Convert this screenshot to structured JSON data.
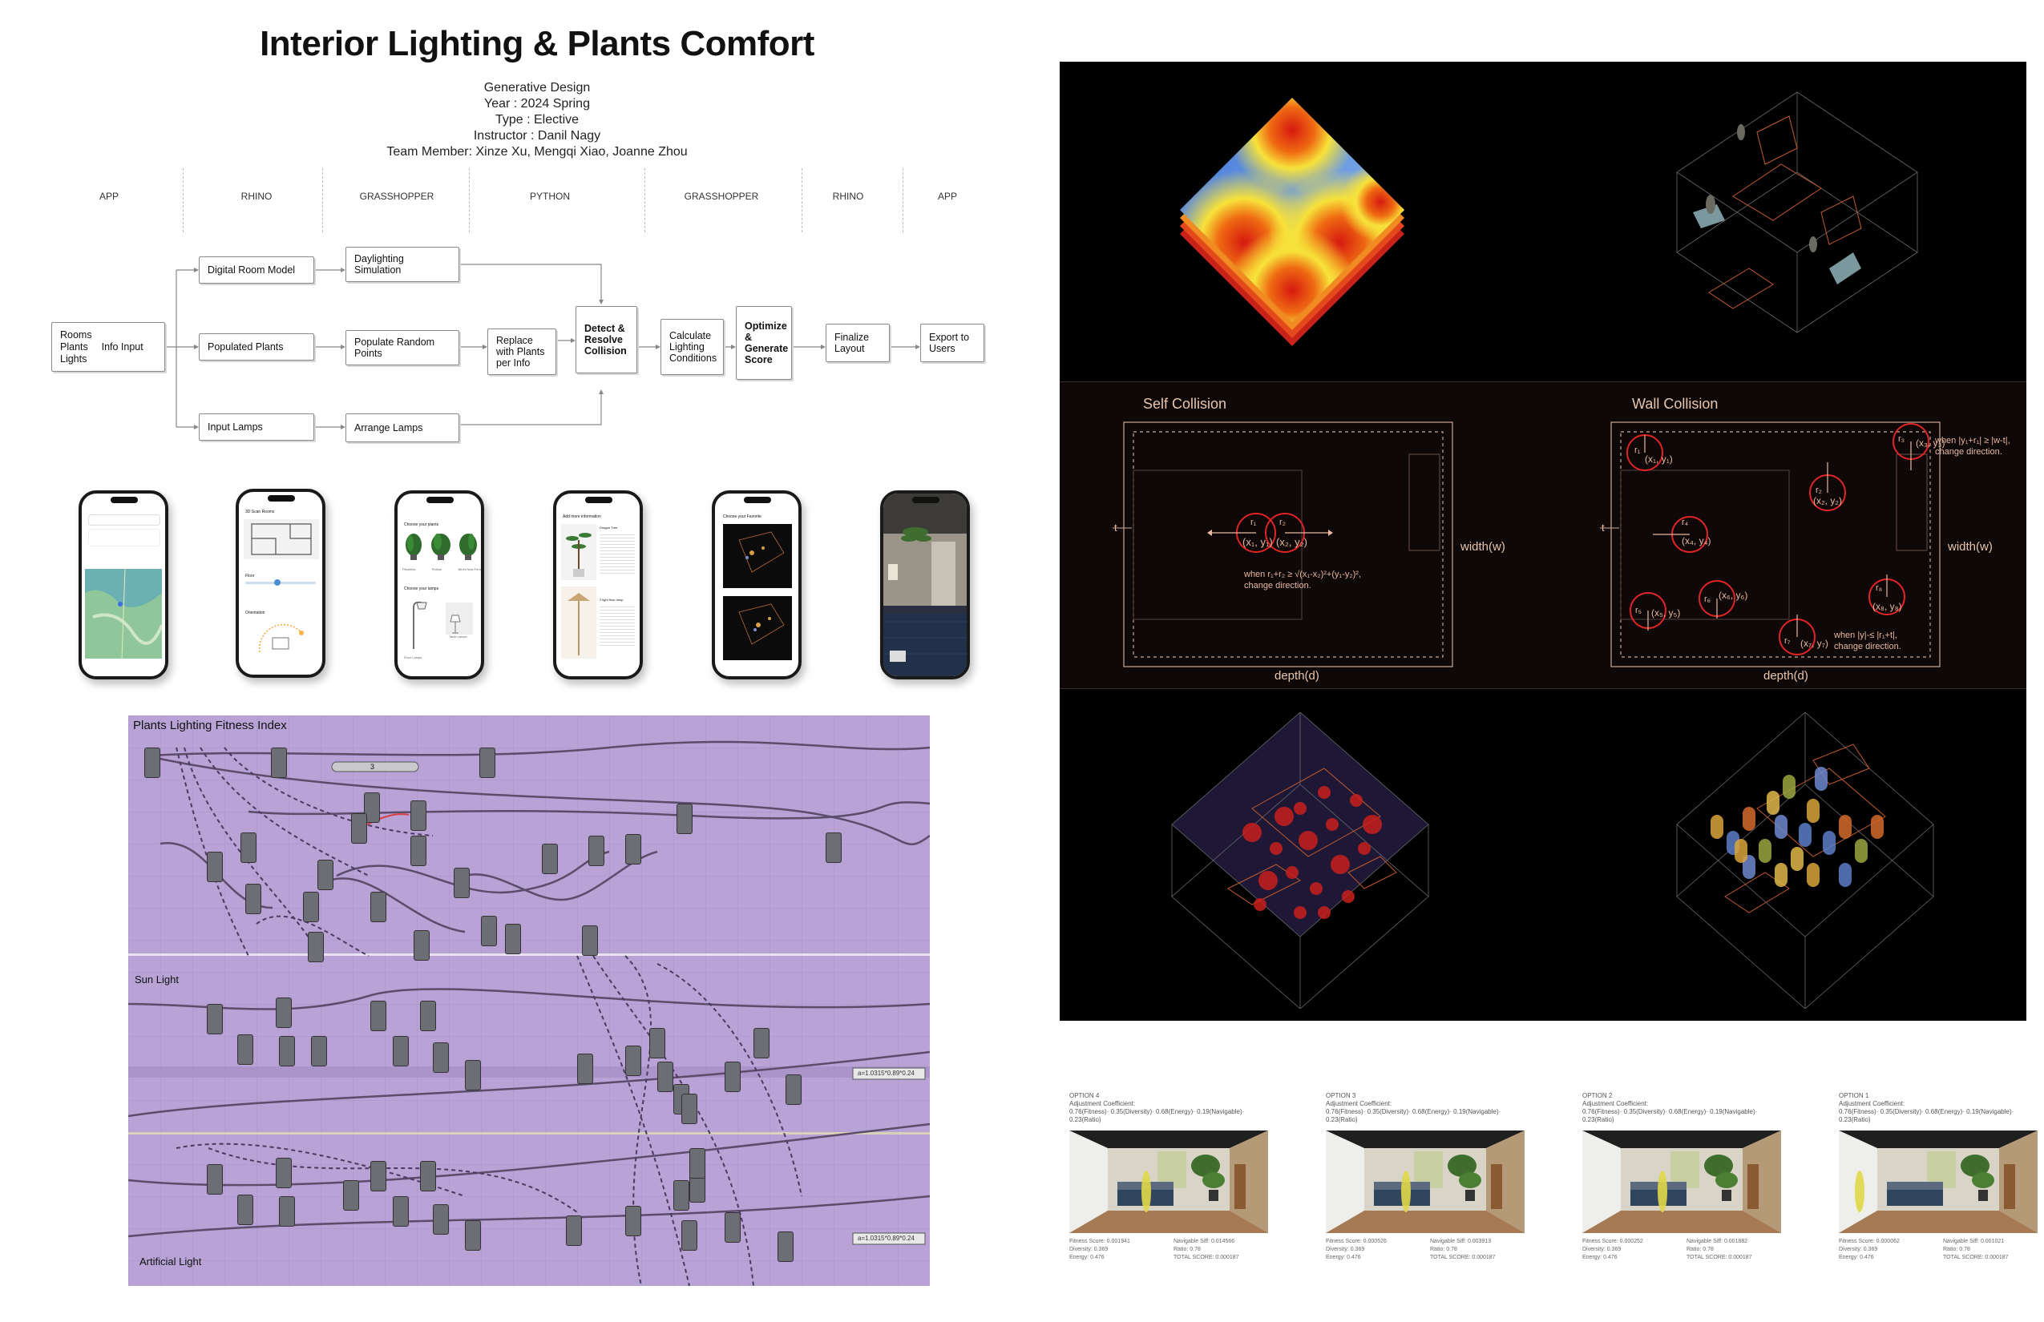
{
  "header": {
    "title": "Interior Lighting & Plants Comfort",
    "lines": [
      "Generative Design",
      "Year : 2024 Spring",
      "Type : Elective",
      "Instructor : Danil Nagy",
      "Team Member: Xinze Xu, Mengqi Xiao, Joanne Zhou"
    ]
  },
  "stages": [
    "APP",
    "RHINO",
    "GRASSHOPPER",
    "PYTHON",
    "GRASSHOPPER",
    "RHINO",
    "APP"
  ],
  "nodes": {
    "inputs": [
      "Rooms",
      "Plants",
      "Lights"
    ],
    "info_input": "Info Input",
    "digital_room_model": "Digital Room Model",
    "populated_plants": "Populated Plants",
    "input_lamps": "Input Lamps",
    "daylighting": "Daylighting Simulation",
    "populate_random": "Populate Random Points",
    "arrange_lamps": "Arrange Lamps",
    "replace_plants": "Replace with Plants per Info",
    "detect": "Detect & Resolve Collision",
    "calculate": "Calculate Lighting Conditions",
    "optimize": "Optimize & Generate Score",
    "finalize": "Finalize Layout",
    "export": "Export to Users"
  },
  "phones": {
    "p2_title": "3D Scan Rooms",
    "p2_floor": "Floor",
    "p2_orientation": "Orientation",
    "p3_title": "Choose your plants",
    "p3_plants": [
      "Pitcairnia",
      "Pothos",
      "Bird's Nest Fern"
    ],
    "p3_lamps": "Choose your lamps",
    "p3_lamp_names": [
      "Floor Lamps",
      "Table Lamps"
    ],
    "p4_title": "Add more information",
    "p4_plant": "Dragon Tree",
    "p4_light": "2 light floor lamp",
    "p5_title": "Choose your Favorite"
  },
  "grasshopper": {
    "sections": [
      "Plants Lighting Fitness Index",
      "Sun Light",
      "Artificial Light"
    ],
    "slider_value": "3",
    "panel_text": "a=1.0315*0.89*0.24"
  },
  "collision": {
    "self_title": "Self Collision",
    "wall_title": "Wall Collision",
    "width_label": "width(w)",
    "depth_label": "depth(d)",
    "t_label": "t",
    "self_formula": [
      "when r₁+r₂ ≥ √(x₁-x₂)²+(y₁-y₂)²,",
      "change direction."
    ],
    "wall_formula_top": [
      "when |y₁+r₁| ≥ |w-t|,",
      "change direction."
    ],
    "wall_formula_bottom": [
      "when |y|-≤ |r₁+t|,",
      "change direction."
    ],
    "self_points": [
      {
        "r": "r₁",
        "p": "(x₁, y₁)"
      },
      {
        "r": "r₂",
        "p": "(x₂, y₂)"
      }
    ],
    "wall_points": [
      {
        "r": "r₁",
        "p": "(x₁, y₁)"
      },
      {
        "r": "r₂",
        "p": "(x₂, y₂)"
      },
      {
        "r": "r₃",
        "p": "(x₃, y₃)"
      },
      {
        "r": "r₄",
        "p": "(x₄, y₄)"
      },
      {
        "r": "r₅",
        "p": "(x₅, y₅)"
      },
      {
        "r": "r₆",
        "p": "(x₆, y₆)"
      },
      {
        "r": "r₇",
        "p": "(x₇, y₇)"
      },
      {
        "r": "r₈",
        "p": "(x₈, y₈)"
      }
    ]
  },
  "options": [
    {
      "name": "OPTION 4",
      "coef_label": "Adjustment Coefficient:",
      "coef": "0.76(Fitness)· 0.35(Diversity)· 0.68(Energy)· 0.19(Navigable)· 0.23(Ratio)",
      "fitness": "Fitness Score: 0.001941",
      "navigable": "Navigable Siff: 0.014566",
      "diversity": "Diversity: 0.369",
      "ratio": "Ratio: 0.78",
      "energy": "Energy: 0.476",
      "total": "TOTAL SCORE: 0.000187"
    },
    {
      "name": "OPTION 3",
      "coef_label": "Adjustment Coefficient:",
      "coef": "0.76(Fitness)· 0.35(Diversity)· 0.68(Energy)· 0.19(Navigable)· 0.23(Ratio)",
      "fitness": "Fitness Score: 0.000526",
      "navigable": "Navigable Siff: 0.003913",
      "diversity": "Diversity: 0.369",
      "ratio": "Ratio: 0.78",
      "energy": "Energy: 0.476",
      "total": "TOTAL SCORE: 0.000187"
    },
    {
      "name": "OPTION 2",
      "coef_label": "Adjustment Coefficient:",
      "coef": "0.76(Fitness)· 0.35(Diversity)· 0.68(Energy)· 0.19(Navigable)· 0.23(Ratio)",
      "fitness": "Fitness Score: 0.000252",
      "navigable": "Navigable Siff: 0.001882",
      "diversity": "Diversity: 0.369",
      "ratio": "Ratio: 0.78",
      "energy": "Energy: 0.476",
      "total": "TOTAL SCORE: 0.000187"
    },
    {
      "name": "OPTION 1",
      "coef_label": "Adjustment Coefficient:",
      "coef": "0.76(Fitness)· 0.35(Diversity)· 0.68(Energy)· 0.19(Navigable)· 0.23(Ratio)",
      "fitness": "Fitness Score: 0.000062",
      "navigable": "Navigable Siff: 0.001021",
      "diversity": "Diversity: 0.369",
      "ratio": "Ratio: 0.78",
      "energy": "Energy: 0.476",
      "total": "TOTAL SCORE: 0.000187"
    }
  ]
}
